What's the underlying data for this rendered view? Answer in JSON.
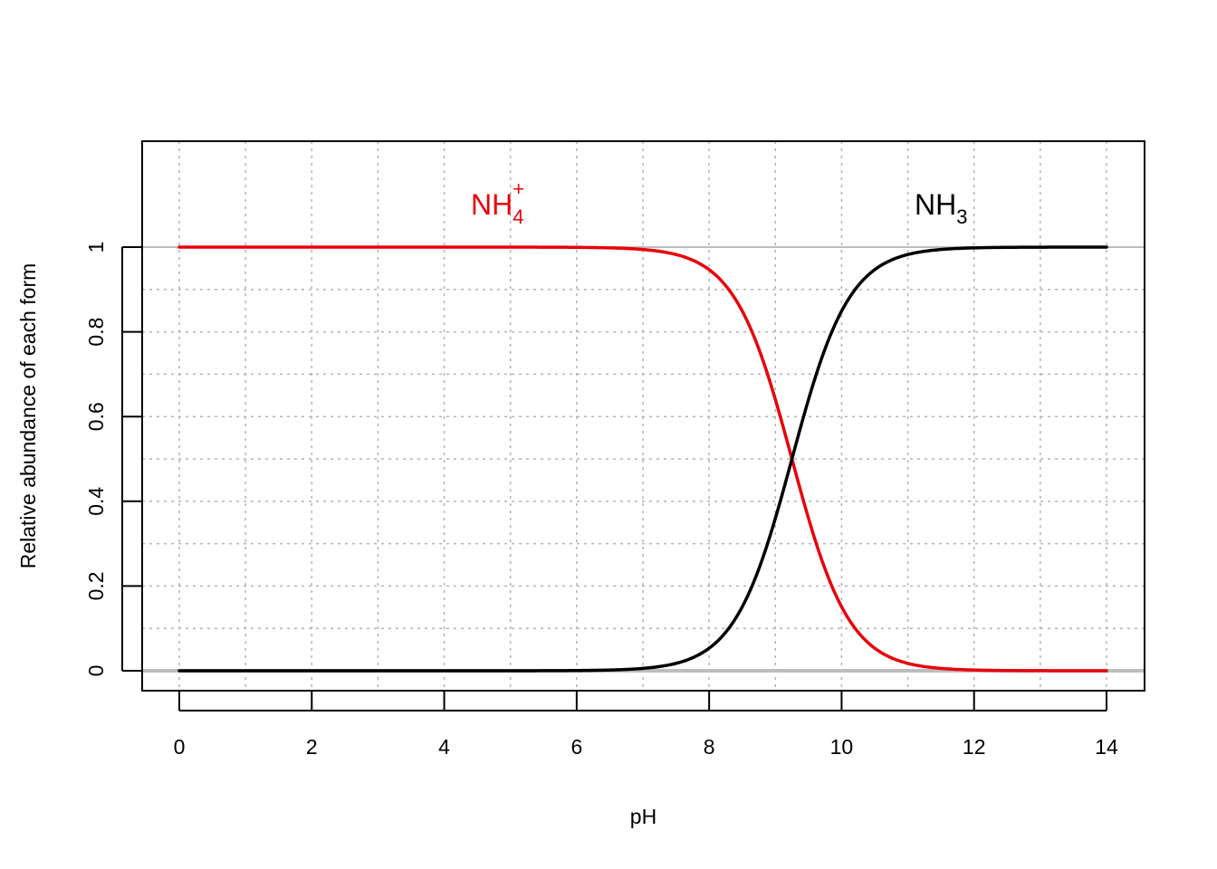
{
  "chart_data": {
    "type": "line",
    "title": "",
    "xlabel": "pH",
    "ylabel": "Relative abundance of each form",
    "xlim": [
      0,
      14
    ],
    "ylim": [
      0,
      1
    ],
    "x_ticks": [
      0,
      2,
      4,
      6,
      8,
      10,
      12,
      14
    ],
    "x_tick_labels": [
      "0",
      "2",
      "4",
      "6",
      "8",
      "10",
      "12",
      "14"
    ],
    "y_ticks": [
      0,
      0.2,
      0.4,
      0.6,
      0.8,
      1
    ],
    "y_tick_labels": [
      "0",
      "0.2",
      "0.4",
      "0.6",
      "0.8",
      "1"
    ],
    "grid": true,
    "grid_style": "dotted",
    "x_grid_step": 1,
    "y_grid_step": 0.1,
    "reference_lines_y": [
      0,
      1
    ],
    "pKa": 9.25,
    "series": [
      {
        "name": "NH4+",
        "label": {
          "base": "NH",
          "sub": "4",
          "sup": "+"
        },
        "label_position": [
          4.8,
          1.1
        ],
        "color": "#e8000b",
        "x": [
          0,
          1,
          2,
          3,
          4,
          5,
          6,
          6.5,
          7,
          7.25,
          7.5,
          7.75,
          8,
          8.25,
          8.5,
          8.75,
          9,
          9.25,
          9.5,
          9.75,
          10,
          10.25,
          10.5,
          10.75,
          11,
          11.25,
          11.5,
          12,
          13,
          14
        ],
        "values": [
          1,
          1,
          1,
          1,
          1,
          0.999,
          0.999,
          0.998,
          0.994,
          0.99,
          0.983,
          0.969,
          0.947,
          0.909,
          0.849,
          0.76,
          0.64,
          0.5,
          0.36,
          0.24,
          0.151,
          0.091,
          0.053,
          0.031,
          0.017,
          0.01,
          0.006,
          0.002,
          0,
          0
        ]
      },
      {
        "name": "NH3",
        "label": {
          "base": "NH",
          "sub": "3",
          "sup": ""
        },
        "label_position": [
          11.5,
          1.1
        ],
        "color": "#000000",
        "x": [
          0,
          1,
          2,
          3,
          4,
          5,
          6,
          6.5,
          7,
          7.25,
          7.5,
          7.75,
          8,
          8.25,
          8.5,
          8.75,
          9,
          9.25,
          9.5,
          9.75,
          10,
          10.25,
          10.5,
          10.75,
          11,
          11.25,
          11.5,
          12,
          13,
          14
        ],
        "values": [
          0,
          0,
          0,
          0,
          0,
          0.001,
          0.001,
          0.002,
          0.006,
          0.01,
          0.017,
          0.031,
          0.053,
          0.091,
          0.151,
          0.24,
          0.36,
          0.5,
          0.64,
          0.76,
          0.849,
          0.909,
          0.947,
          0.969,
          0.983,
          0.99,
          0.994,
          0.998,
          1,
          1
        ]
      }
    ]
  }
}
